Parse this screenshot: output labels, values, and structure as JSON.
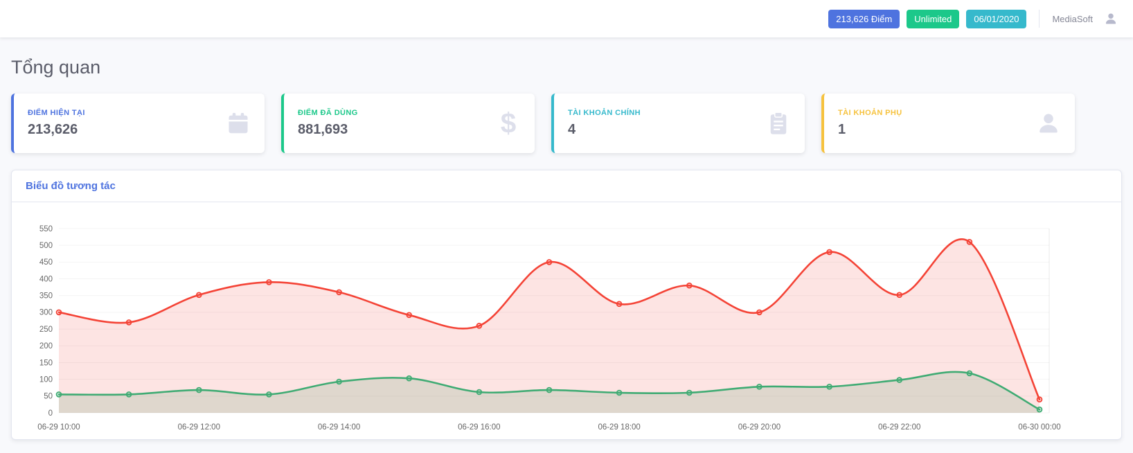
{
  "topbar": {
    "badges": [
      {
        "label": "213,626 Điểm",
        "color": "#4e73df"
      },
      {
        "label": "Unlimited",
        "color": "#1cc88a"
      },
      {
        "label": "06/01/2020",
        "color": "#36b9cc"
      }
    ],
    "user": "MediaSoft"
  },
  "page": {
    "title": "Tổng quan"
  },
  "cards": [
    {
      "label": "ĐIỂM HIỆN TẠI",
      "value": "213,626",
      "accent": "#4e73df",
      "icon": "calendar-icon"
    },
    {
      "label": "ĐIỂM ĐÃ DÙNG",
      "value": "881,693",
      "accent": "#1cc88a",
      "icon": "dollar-icon"
    },
    {
      "label": "TÀI KHOẢN CHÍNH",
      "value": "4",
      "accent": "#36b9cc",
      "icon": "clipboard-icon"
    },
    {
      "label": "TÀI KHOẢN PHỤ",
      "value": "1",
      "accent": "#f6c23e",
      "icon": "user-icon"
    }
  ],
  "chart_card": {
    "title": "Biểu đồ tương tác"
  },
  "chart_data": {
    "type": "area",
    "x": [
      "06-29 10:00",
      "06-29 11:00",
      "06-29 12:00",
      "06-29 13:00",
      "06-29 14:00",
      "06-29 15:00",
      "06-29 16:00",
      "06-29 17:00",
      "06-29 18:00",
      "06-29 19:00",
      "06-29 20:00",
      "06-29 21:00",
      "06-29 22:00",
      "06-29 23:00",
      "06-30 00:00"
    ],
    "x_tick_labels": [
      "06-29 10:00",
      "06-29 12:00",
      "06-29 14:00",
      "06-29 16:00",
      "06-29 18:00",
      "06-29 20:00",
      "06-29 22:00",
      "06-30 00:00"
    ],
    "series": [
      {
        "name": "red-series",
        "color": "#f44336",
        "fill": "rgba(244,67,54,0.14)",
        "values": [
          300,
          270,
          352,
          390,
          360,
          292,
          260,
          450,
          325,
          380,
          300,
          480,
          352,
          510,
          40
        ]
      },
      {
        "name": "green-series",
        "color": "#3fab73",
        "fill": "rgba(63,171,115,0.18)",
        "values": [
          55,
          55,
          68,
          55,
          93,
          103,
          62,
          68,
          60,
          60,
          78,
          78,
          98,
          118,
          10
        ]
      }
    ],
    "ylim": [
      0,
      550
    ],
    "ytick_step": 50,
    "grid": "faint-horizontal",
    "legend": false
  }
}
